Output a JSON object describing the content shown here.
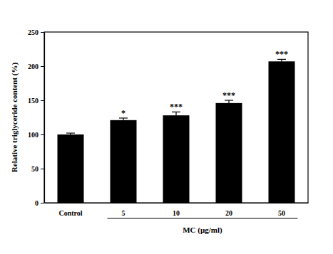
{
  "chart_data": {
    "type": "bar",
    "categories": [
      "Control",
      "5",
      "10",
      "20",
      "50"
    ],
    "values": [
      100,
      121,
      128,
      146,
      207
    ],
    "errors": [
      2,
      3,
      5,
      4,
      3
    ],
    "annotations": [
      null,
      "*",
      "***",
      "***",
      "***"
    ],
    "color": "#000000",
    "y_label": "Relative triglyceride content (%)",
    "x_label": "MC (µg/ml)",
    "ylim": [
      0,
      250
    ],
    "yticks": [
      0,
      50,
      100,
      150,
      200,
      250
    ],
    "grid": false
  }
}
